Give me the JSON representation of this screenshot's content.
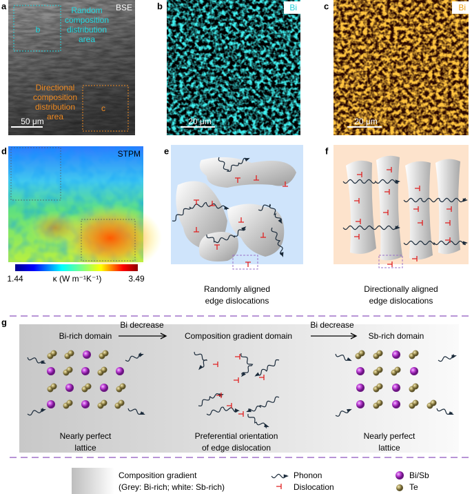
{
  "panel_a": {
    "letter": "a",
    "label": "BSE",
    "box_b": "b",
    "box_c": "c",
    "random_area": [
      "Random",
      "composition",
      "distribution",
      "area"
    ],
    "directional_area": [
      "Directional",
      "composition",
      "distribution",
      "area"
    ],
    "scale_bar": "50 μm"
  },
  "panel_b": {
    "letter": "b",
    "label": "Bi",
    "scale_bar": "20 μm"
  },
  "panel_c": {
    "letter": "c",
    "label": "Bi",
    "scale_bar": "20 μm"
  },
  "panel_d": {
    "letter": "d",
    "label": "STPM",
    "colorbar_min": "1.44",
    "colorbar_max": "3.49",
    "colorbar_label": "κ (W m⁻¹K⁻¹)"
  },
  "panel_e": {
    "letter": "e",
    "caption": [
      "Randomly aligned",
      "edge dislocations"
    ]
  },
  "panel_f": {
    "letter": "f",
    "caption": [
      "Directionally aligned",
      "edge dislocations"
    ]
  },
  "panel_g": {
    "letter": "g",
    "domains": [
      "Bi-rich domain",
      "Composition gradient domain",
      "Sb-rich domain"
    ],
    "arrows": [
      "Bi decrease",
      "Bi decrease"
    ],
    "captions": [
      [
        "Nearly perfect",
        "lattice"
      ],
      [
        "Preferential orientation",
        "of edge dislocation"
      ],
      [
        "Nearly perfect",
        "lattice"
      ]
    ]
  },
  "legend": {
    "gradient": "Composition gradient",
    "gradient_note": "(Grey: Bi-rich; white: Sb-rich)",
    "phonon": "Phonon",
    "dislocation": "Dislocation",
    "bisb": "Bi/Sb",
    "te": "Te"
  }
}
